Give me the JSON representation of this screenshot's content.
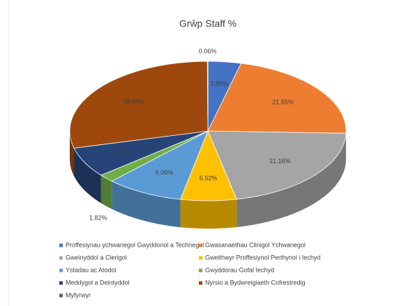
{
  "chart_data": {
    "type": "pie3d",
    "title": "Grŵp Staff %",
    "categories": [
      "Proffesiynau ychwanegol Gwyddonol a Technegol",
      "Gwasanaethau Clinigol Ychwanegol",
      "Gweinyddol a Clerigol",
      "Gweithwyr Proffesiynol Perthynol i Iechyd",
      "Ystadau ac Atodol",
      "Gwyddorau Gofal Iechyd",
      "Meddygol a Deintyddol",
      "Nyrsio a Bydwreigiaeth Cofrestredig",
      "Myfyrwyr"
    ],
    "values": [
      3.86,
      21.65,
      21.16,
      6.52,
      9.06,
      1.82,
      6.99,
      28.88,
      0.06
    ],
    "value_labels": [
      "3.86%",
      "21.65%",
      "21.16%",
      "6.52%",
      "9.06%",
      "1.82%",
      "6.99%",
      "28.88%",
      "0.06%"
    ],
    "colors": [
      "#4472c4",
      "#ed7d31",
      "#a5a5a5",
      "#ffc000",
      "#5b9bd5",
      "#70ad47",
      "#264478",
      "#9e480e",
      "#636363"
    ],
    "legend": "bottom"
  }
}
